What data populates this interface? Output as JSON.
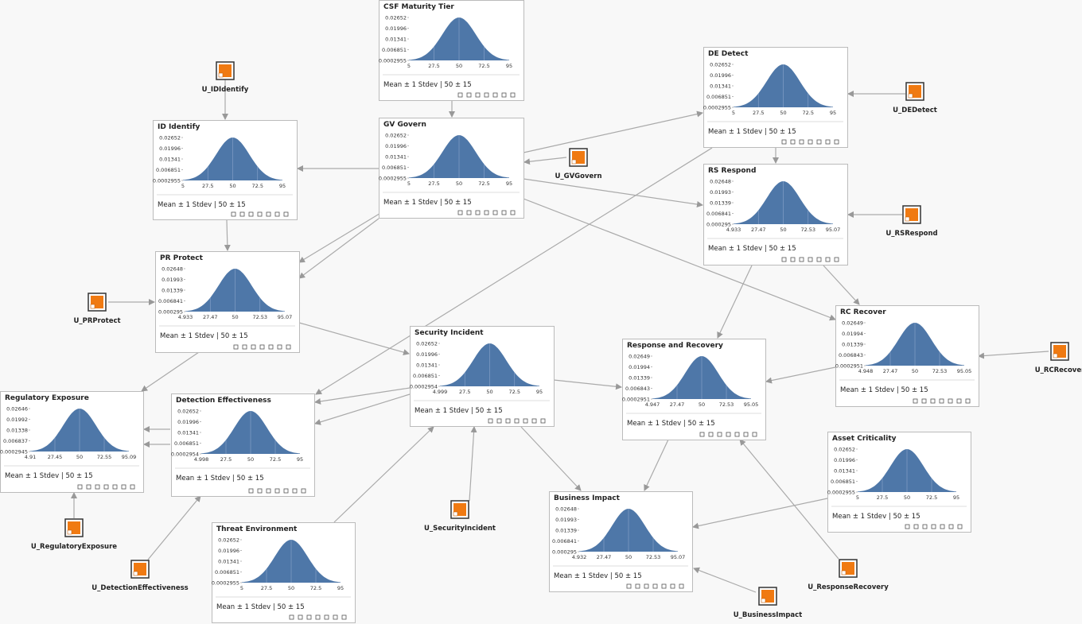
{
  "nodes": [
    {
      "title": "CSF Maturity Tier",
      "yticks": [
        "0.02652",
        "0.01996",
        "0.01341",
        "0.006851",
        "0.0002955"
      ],
      "xticks": [
        "5",
        "27.5",
        "50",
        "72.5",
        "95"
      ],
      "summary": "Mean ± 1 Stdev | 50 ± 15"
    },
    {
      "title": "ID Identify",
      "yticks": [
        "0.02652",
        "0.01996",
        "0.01341",
        "0.006851",
        "0.0002955"
      ],
      "xticks": [
        "5",
        "27.5",
        "50",
        "72.5",
        "95"
      ],
      "summary": "Mean ± 1 Stdev | 50 ± 15"
    },
    {
      "title": "GV Govern",
      "yticks": [
        "0.02652",
        "0.01996",
        "0.01341",
        "0.006851",
        "0.0002955"
      ],
      "xticks": [
        "5",
        "27.5",
        "50",
        "72.5",
        "95"
      ],
      "summary": "Mean ± 1 Stdev | 50 ± 15"
    },
    {
      "title": "DE Detect",
      "yticks": [
        "0.02652",
        "0.01996",
        "0.01341",
        "0.006851",
        "0.0002955"
      ],
      "xticks": [
        "5",
        "27.5",
        "50",
        "72.5",
        "95"
      ],
      "summary": "Mean ± 1 Stdev | 50 ± 15"
    },
    {
      "title": "RS Respond",
      "yticks": [
        "0.02648",
        "0.01993",
        "0.01339",
        "0.006841",
        "0.000295"
      ],
      "xticks": [
        "4.933",
        "27.47",
        "50",
        "72.53",
        "95.07"
      ],
      "summary": "Mean ± 1 Stdev | 50 ± 15"
    },
    {
      "title": "PR Protect",
      "yticks": [
        "0.02648",
        "0.01993",
        "0.01339",
        "0.006841",
        "0.000295"
      ],
      "xticks": [
        "4.933",
        "27.47",
        "50",
        "72.53",
        "95.07"
      ],
      "summary": "Mean ± 1 Stdev | 50 ± 15"
    },
    {
      "title": "RC Recover",
      "yticks": [
        "0.02649",
        "0.01994",
        "0.01339",
        "0.006843",
        "0.0002951"
      ],
      "xticks": [
        "4.948",
        "27.47",
        "50",
        "72.53",
        "95.05"
      ],
      "summary": "Mean ± 1 Stdev | 50 ± 15"
    },
    {
      "title": "Security Incident",
      "yticks": [
        "0.02652",
        "0.01996",
        "0.01341",
        "0.006851",
        "0.0002954"
      ],
      "xticks": [
        "4.999",
        "27.5",
        "50",
        "72.5",
        "95"
      ],
      "summary": "Mean ± 1 Stdev | 50 ± 15"
    },
    {
      "title": "Response and Recovery",
      "yticks": [
        "0.02649",
        "0.01994",
        "0.01339",
        "0.006843",
        "0.0002951"
      ],
      "xticks": [
        "4.947",
        "27.47",
        "50",
        "72.53",
        "95.05"
      ],
      "summary": "Mean ± 1 Stdev | 50 ± 15"
    },
    {
      "title": "Regulatory Exposure",
      "yticks": [
        "0.02646",
        "0.01992",
        "0.01338",
        "0.006837",
        "0.0002945"
      ],
      "xticks": [
        "4.91",
        "27.45",
        "50",
        "72.55",
        "95.09"
      ],
      "summary": "Mean ± 1 Stdev | 50 ± 15"
    },
    {
      "title": "Detection Effectiveness",
      "yticks": [
        "0.02652",
        "0.01996",
        "0.01341",
        "0.006851",
        "0.0002954"
      ],
      "xticks": [
        "4.998",
        "27.5",
        "50",
        "72.5",
        "95"
      ],
      "summary": "Mean ± 1 Stdev | 50 ± 15"
    },
    {
      "title": "Asset Criticality",
      "yticks": [
        "0.02652",
        "0.01996",
        "0.01341",
        "0.006851",
        "0.0002955"
      ],
      "xticks": [
        "5",
        "27.5",
        "50",
        "72.5",
        "95"
      ],
      "summary": "Mean ± 1 Stdev | 50 ± 15"
    },
    {
      "title": "Business Impact",
      "yticks": [
        "0.02648",
        "0.01993",
        "0.01339",
        "0.006841",
        "0.000295"
      ],
      "xticks": [
        "4.932",
        "27.47",
        "50",
        "72.53",
        "95.07"
      ],
      "summary": "Mean ± 1 Stdev | 50 ± 15"
    },
    {
      "title": "Threat Environment",
      "yticks": [
        "0.02652",
        "0.01996",
        "0.01341",
        "0.006851",
        "0.0002955"
      ],
      "xticks": [
        "5",
        "27.5",
        "50",
        "72.5",
        "95"
      ],
      "summary": "Mean ± 1 Stdev | 50 ± 15"
    }
  ],
  "utility_nodes": [
    {
      "label": "U_IDIdentify"
    },
    {
      "label": "U_DEDetect"
    },
    {
      "label": "U_GVGovern"
    },
    {
      "label": "U_RSRespond"
    },
    {
      "label": "U_PRProtect"
    },
    {
      "label": "U_RCRecover"
    },
    {
      "label": "U_RegulatoryExposure"
    },
    {
      "label": "U_SecurityIncident"
    },
    {
      "label": "U_DetectionEffectiveness"
    },
    {
      "label": "U_ResponseRecovery"
    },
    {
      "label": "U_BusinessImpact"
    }
  ]
}
